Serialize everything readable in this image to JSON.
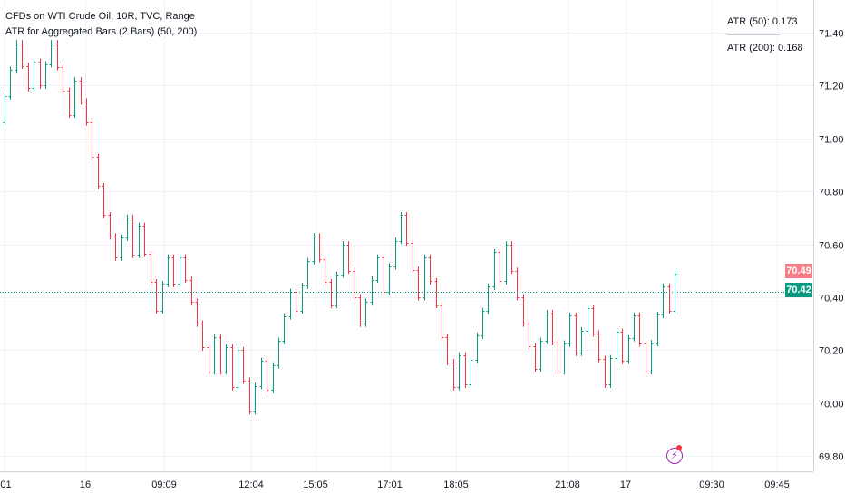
{
  "header": {
    "title": "CFDs on WTI Crude Oil, 10R, TVC, Range",
    "indicator": "ATR for Aggregated Bars (2 Bars) (50, 200)"
  },
  "atr": {
    "atr50": "ATR (50): 0.173",
    "atr200": "ATR (200): 0.168"
  },
  "price_tags": {
    "upper": "70.49",
    "last": "70.42"
  },
  "colors": {
    "up": "#089981",
    "down": "#f23645",
    "grid": "#f0f3fa",
    "axis_text": "#131722",
    "last_line": "#089981"
  },
  "chart_data": {
    "type": "range-bars",
    "title": "CFDs on WTI Crude Oil, 10R, TVC, Range",
    "ylim": [
      69.74,
      71.56
    ],
    "y_ticks": [
      "71.40",
      "71.20",
      "71.00",
      "70.80",
      "70.60",
      "70.40",
      "70.20",
      "70.00",
      "69.80"
    ],
    "x_ticks": [
      ":01",
      "16",
      "09:09",
      "12:04",
      "15:05",
      "17:01",
      "18:05",
      "21:08",
      "17",
      "09:30",
      "09:45"
    ],
    "last_price": 70.42,
    "legs": [
      [
        71.06,
        71.36
      ],
      [
        71.36,
        71.19
      ],
      [
        71.19,
        71.29
      ],
      [
        71.29,
        71.2
      ],
      [
        71.2,
        71.36
      ],
      [
        71.36,
        71.09
      ],
      [
        71.09,
        71.22
      ],
      [
        71.22,
        71.06
      ],
      [
        71.06,
        70.93
      ],
      [
        70.93,
        70.71
      ],
      [
        70.71,
        70.55
      ],
      [
        70.55,
        70.7
      ],
      [
        70.7,
        70.56
      ],
      [
        70.56,
        70.67
      ],
      [
        70.67,
        70.35
      ],
      [
        70.35,
        70.55
      ],
      [
        70.55,
        70.45
      ],
      [
        70.45,
        70.55
      ],
      [
        70.55,
        70.3
      ],
      [
        70.3,
        70.12
      ],
      [
        70.12,
        70.25
      ],
      [
        70.25,
        70.12
      ],
      [
        70.12,
        70.21
      ],
      [
        70.21,
        70.06
      ],
      [
        70.06,
        70.2
      ],
      [
        70.2,
        69.97
      ],
      [
        69.97,
        70.16
      ],
      [
        70.16,
        70.05
      ],
      [
        70.05,
        70.42
      ],
      [
        70.42,
        70.35
      ],
      [
        70.35,
        70.63
      ],
      [
        70.63,
        70.37
      ],
      [
        70.37,
        70.6
      ],
      [
        70.6,
        70.3
      ],
      [
        70.3,
        70.55
      ],
      [
        70.55,
        70.42
      ],
      [
        70.42,
        70.71
      ],
      [
        70.71,
        70.4
      ],
      [
        70.4,
        70.55
      ],
      [
        70.55,
        70.37
      ],
      [
        70.37,
        70.25
      ],
      [
        70.25,
        70.06
      ],
      [
        70.06,
        70.18
      ],
      [
        70.18,
        70.07
      ],
      [
        70.07,
        70.44
      ],
      [
        70.44,
        70.57
      ],
      [
        70.57,
        70.46
      ],
      [
        70.46,
        70.6
      ],
      [
        70.6,
        70.3
      ],
      [
        70.3,
        70.13
      ],
      [
        70.13,
        70.34
      ],
      [
        70.34,
        70.12
      ],
      [
        70.12,
        70.33
      ],
      [
        70.33,
        70.19
      ],
      [
        70.19,
        70.36
      ],
      [
        70.36,
        70.07
      ],
      [
        70.07,
        70.27
      ],
      [
        70.27,
        70.16
      ],
      [
        70.16,
        70.33
      ],
      [
        70.33,
        70.12
      ],
      [
        70.12,
        70.44
      ],
      [
        70.44,
        70.35
      ],
      [
        70.35,
        70.49
      ]
    ]
  }
}
